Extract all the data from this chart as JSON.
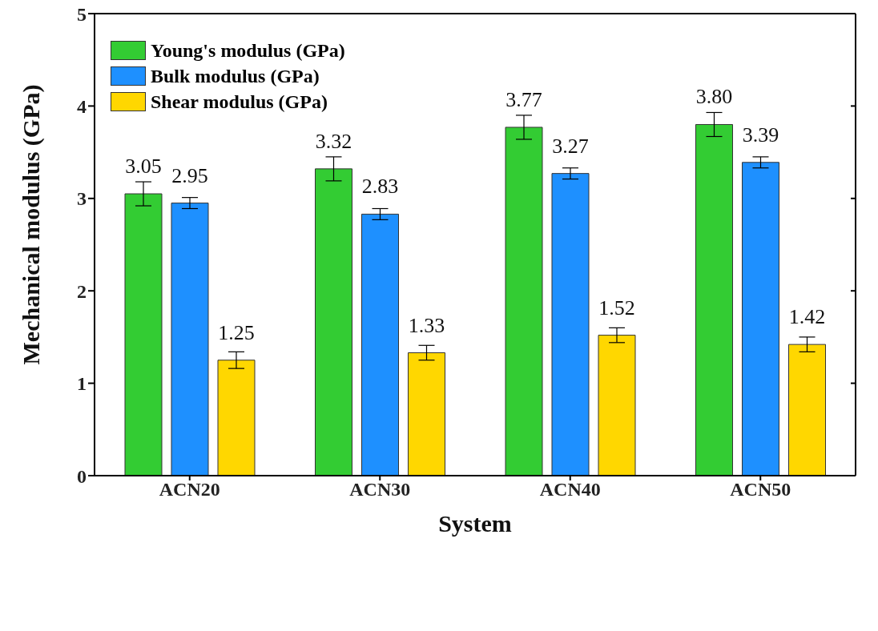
{
  "chart_data": {
    "type": "bar",
    "xlabel": "System",
    "ylabel": "Mechanical modulus (GPa)",
    "categories": [
      "ACN20",
      "ACN30",
      "ACN40",
      "ACN50"
    ],
    "series": [
      {
        "name": "Young's modulus (GPa)",
        "color": "#33cc33",
        "values": [
          3.05,
          3.32,
          3.77,
          3.8
        ],
        "errors": [
          0.13,
          0.13,
          0.13,
          0.13
        ],
        "value_labels": [
          "3.05",
          "3.32",
          "3.77",
          "3.80"
        ]
      },
      {
        "name": "Bulk modulus (GPa)",
        "color": "#1e90ff",
        "values": [
          2.95,
          2.83,
          3.27,
          3.39
        ],
        "errors": [
          0.06,
          0.06,
          0.06,
          0.06
        ],
        "value_labels": [
          "2.95",
          "2.83",
          "3.27",
          "3.39"
        ]
      },
      {
        "name": "Shear modulus (GPa)",
        "color": "#ffd700",
        "values": [
          1.25,
          1.33,
          1.52,
          1.42
        ],
        "errors": [
          0.09,
          0.08,
          0.08,
          0.08
        ],
        "value_labels": [
          "1.25",
          "1.33",
          "1.52",
          "1.42"
        ]
      }
    ],
    "ylim": [
      0,
      5
    ],
    "yticks": [
      0,
      1,
      2,
      3,
      4,
      5
    ],
    "grid": false,
    "legend": "top left"
  }
}
